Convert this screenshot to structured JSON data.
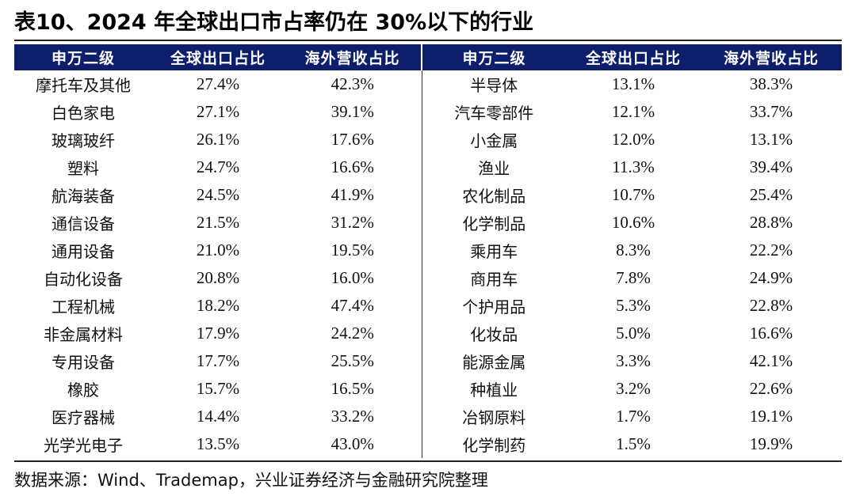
{
  "title": "表10、2024 年全球出口市占率仍在 30%以下的行业",
  "headers": [
    "申万二级",
    "全球出口占比",
    "海外营收占比",
    "申万二级",
    "全球出口占比",
    "海外营收占比"
  ],
  "rows": [
    [
      "摩托车及其他",
      "27.4%",
      "42.3%",
      "半导体",
      "13.1%",
      "38.3%"
    ],
    [
      "白色家电",
      "27.1%",
      "39.1%",
      "汽车零部件",
      "12.1%",
      "33.7%"
    ],
    [
      "玻璃玻纤",
      "26.1%",
      "17.6%",
      "小金属",
      "12.0%",
      "13.1%"
    ],
    [
      "塑料",
      "24.7%",
      "16.6%",
      "渔业",
      "11.3%",
      "39.4%"
    ],
    [
      "航海装备",
      "24.5%",
      "41.9%",
      "农化制品",
      "10.7%",
      "25.4%"
    ],
    [
      "通信设备",
      "21.5%",
      "31.2%",
      "化学制品",
      "10.6%",
      "28.8%"
    ],
    [
      "通用设备",
      "21.0%",
      "19.5%",
      "乘用车",
      "8.3%",
      "22.2%"
    ],
    [
      "自动化设备",
      "20.8%",
      "16.0%",
      "商用车",
      "7.8%",
      "24.9%"
    ],
    [
      "工程机械",
      "18.2%",
      "47.4%",
      "个护用品",
      "5.3%",
      "22.8%"
    ],
    [
      "非金属材料",
      "17.9%",
      "24.2%",
      "化妆品",
      "5.0%",
      "16.6%"
    ],
    [
      "专用设备",
      "17.7%",
      "25.5%",
      "能源金属",
      "3.3%",
      "42.1%"
    ],
    [
      "橡胶",
      "15.7%",
      "16.5%",
      "种植业",
      "3.2%",
      "22.6%"
    ],
    [
      "医疗器械",
      "14.4%",
      "33.2%",
      "冶钢原料",
      "1.7%",
      "19.1%"
    ],
    [
      "光学光电子",
      "13.5%",
      "43.0%",
      "化学制药",
      "1.5%",
      "19.9%"
    ]
  ],
  "source": "数据来源：Wind、Trademap，兴业证券经济与金融研究院整理",
  "colors": {
    "header_bg": "#0d1f6b",
    "header_text": "#ffffff",
    "rule": "#222222"
  }
}
